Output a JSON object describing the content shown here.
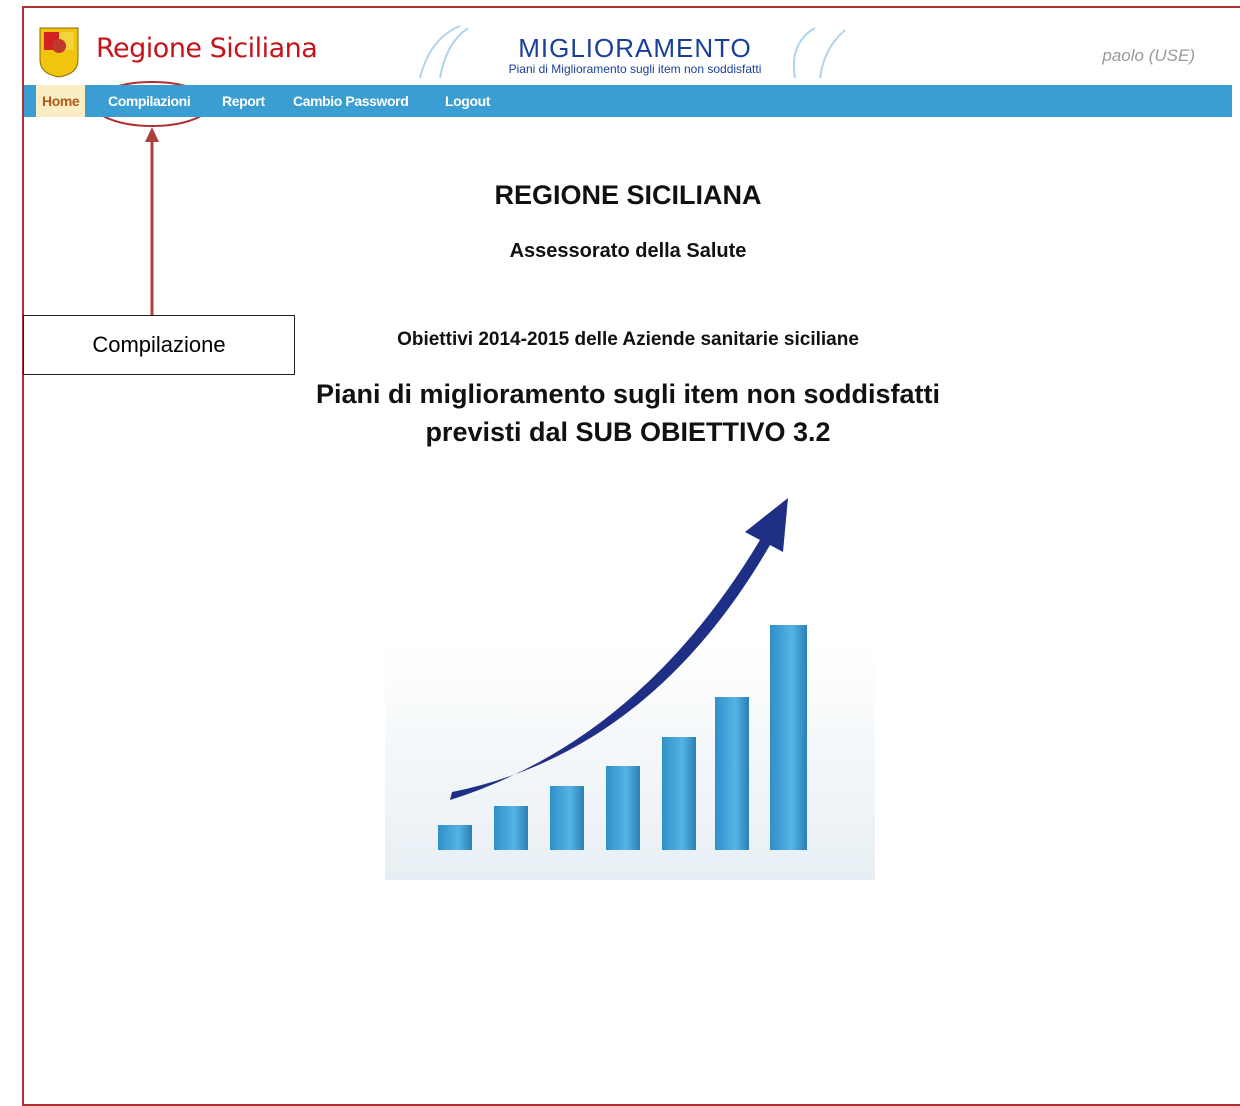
{
  "header": {
    "brand": "Regione Siciliana",
    "app_title": "MIGLIORAMENTO",
    "app_subtitle": "Piani di Miglioramento sugli item non soddisfatti",
    "user": "paolo (USE)"
  },
  "nav": {
    "items": [
      "Home",
      "Compilazioni",
      "Report",
      "Cambio Password",
      "Logout"
    ]
  },
  "main": {
    "title": "REGIONE SICILIANA",
    "subtitle": "Assessorato della Salute",
    "objectives": "Obiettivi 2014-2015 delle Aziende sanitarie siciliane",
    "heading_lines": [
      "Piani di miglioramento sugli item non soddisfatti",
      "previsti dal SUB OBIETTIVO 3.2"
    ]
  },
  "annotation": {
    "label": "Compilazione"
  }
}
